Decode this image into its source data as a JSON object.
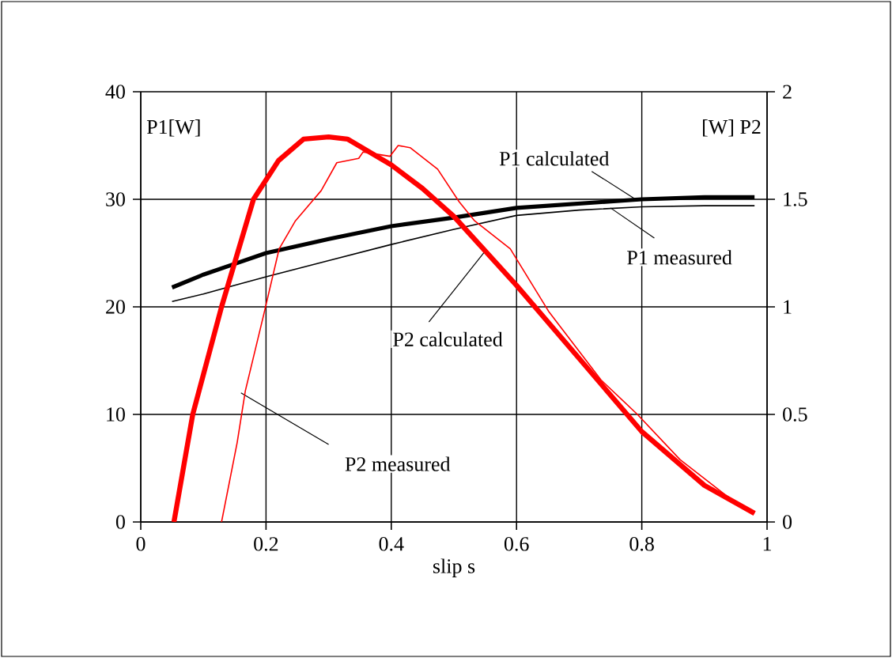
{
  "chart_data": {
    "type": "line",
    "xlabel": "slip s",
    "ylabel": "P1[W]",
    "y2label": "[W] P2",
    "xlim": [
      0,
      1
    ],
    "xticks": [
      0,
      0.2,
      0.4,
      0.6,
      0.8,
      1
    ],
    "ylim": [
      0,
      40
    ],
    "yticks": [
      0,
      10,
      20,
      30,
      40
    ],
    "y2lim": [
      0,
      2
    ],
    "y2ticks": [
      0,
      0.5,
      1,
      1.5,
      2
    ],
    "grid": true,
    "series": [
      {
        "color": "#000000",
        "x": [
          0.05,
          0.1,
          0.15,
          0.2,
          0.3,
          0.4,
          0.5,
          0.6,
          0.7,
          0.8,
          0.9,
          0.98
        ],
        "values": [
          21.8,
          23,
          24,
          25,
          26.3,
          27.5,
          28.3,
          29.2,
          29.6,
          30,
          30.2,
          30.2
        ]
      },
      {
        "color": "#000000",
        "x": [
          0.05,
          0.1,
          0.15,
          0.2,
          0.3,
          0.4,
          0.5,
          0.6,
          0.7,
          0.8,
          0.9,
          0.98
        ],
        "values": [
          20.5,
          21.2,
          22,
          22.8,
          24.3,
          25.8,
          27.2,
          28.5,
          29,
          29.3,
          29.4,
          29.4
        ]
      },
      {
        "color": "#ff0000",
        "axis": "y2",
        "x": [
          0.053,
          0.083,
          0.129,
          0.18,
          0.22,
          0.26,
          0.3,
          0.33,
          0.4,
          0.45,
          0.5,
          0.6,
          0.7,
          0.8,
          0.9,
          0.98
        ],
        "values": [
          0,
          0.5,
          1.0,
          1.5,
          1.68,
          1.78,
          1.79,
          1.78,
          1.66,
          1.55,
          1.42,
          1.1,
          0.76,
          0.42,
          0.17,
          0.04
        ]
      },
      {
        "color": "#ff0000",
        "axis": "y2",
        "x": [
          0.129,
          0.154,
          0.167,
          0.196,
          0.221,
          0.247,
          0.288,
          0.313,
          0.348,
          0.355,
          0.398,
          0.411,
          0.43,
          0.474,
          0.508,
          0.533,
          0.59,
          0.651,
          0.735,
          0.793,
          0.861,
          0.945,
          0.98
        ],
        "values": [
          0,
          0.37,
          0.61,
          0.96,
          1.27,
          1.4,
          1.54,
          1.67,
          1.69,
          1.72,
          1.7,
          1.75,
          1.74,
          1.64,
          1.49,
          1.4,
          1.27,
          0.98,
          0.66,
          0.5,
          0.29,
          0.1,
          0.04
        ]
      }
    ],
    "annotations": [
      {
        "text": "P1 calculated",
        "x": 0.79,
        "y": 30
      },
      {
        "text": "P1 measured",
        "x": 0.75,
        "y": 29.2
      },
      {
        "text": "P2 calculated",
        "x": 0.55,
        "y": 25.2
      },
      {
        "text": "P2 measured",
        "x": 0.16,
        "y": 12
      }
    ]
  }
}
